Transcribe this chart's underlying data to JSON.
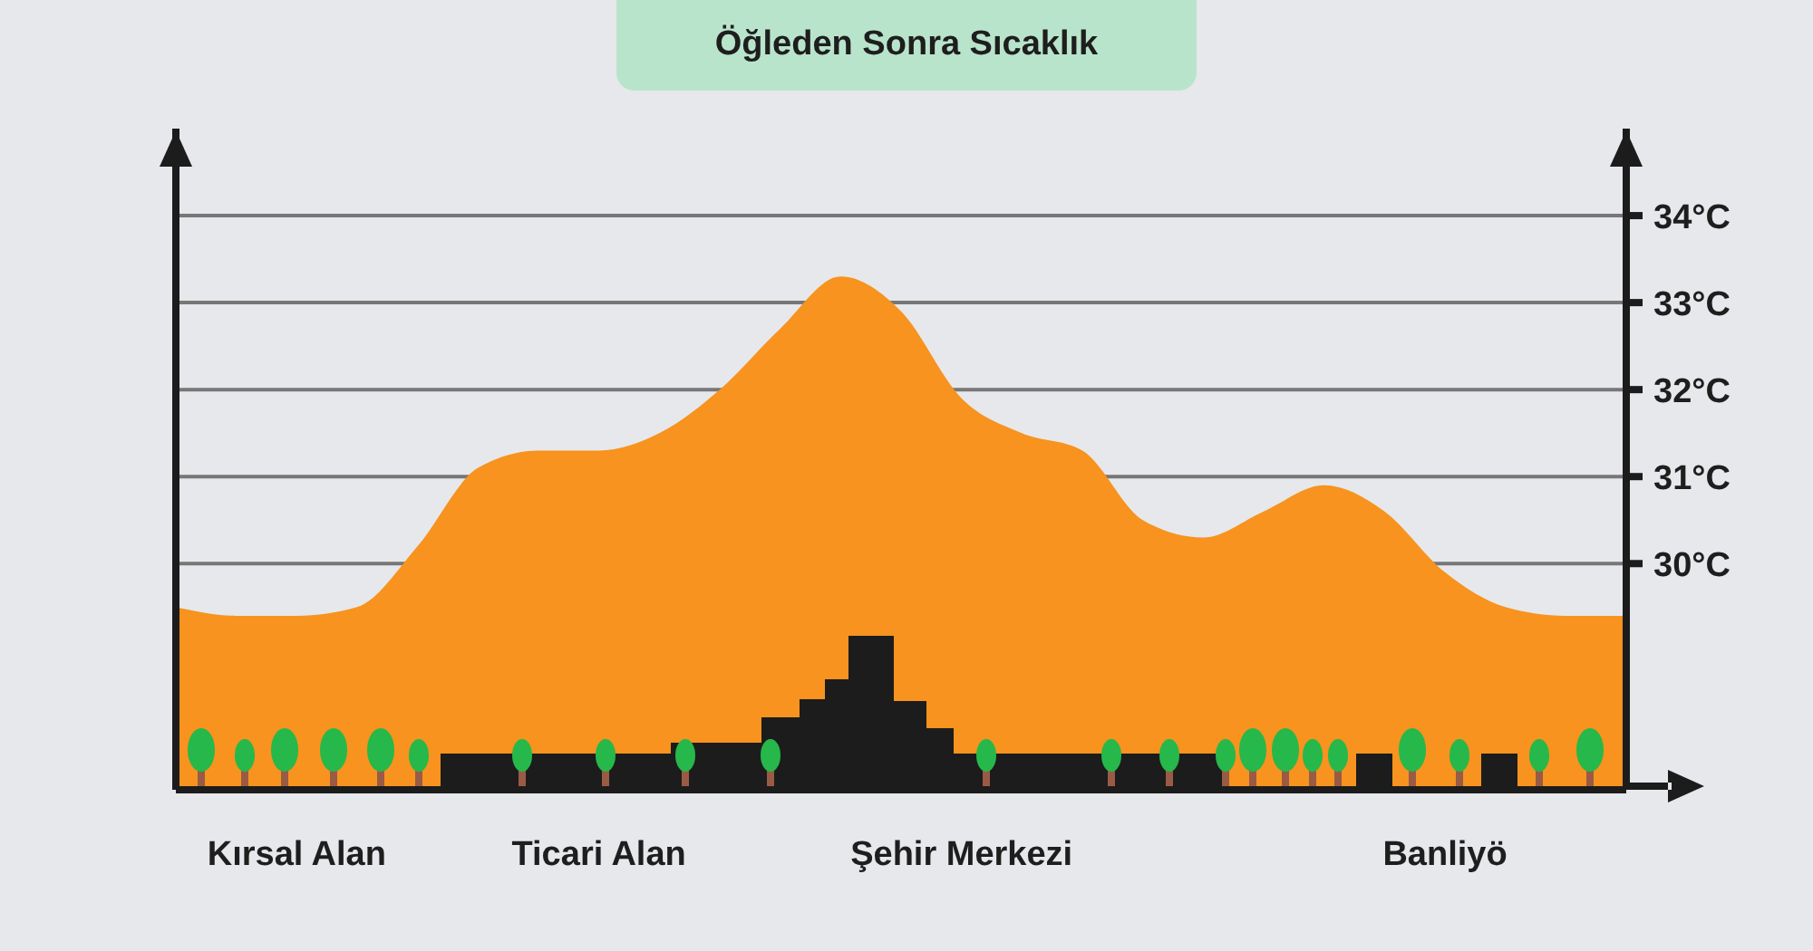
{
  "chart_data": {
    "type": "area",
    "title": "Öğleden Sonra Sıcaklık",
    "categories": [
      null,
      null,
      "Kırsal Alan",
      null,
      null,
      null,
      null,
      "Ticari Alan",
      null,
      null,
      null,
      null,
      null,
      "Şehir Merkezi",
      null,
      null,
      null,
      null,
      null,
      null,
      null,
      "Banliyö",
      null,
      null,
      null
    ],
    "series": [
      {
        "color": "#f7931e",
        "values": [
          29.5,
          29.4,
          29.4,
          29.5,
          30.2,
          31.1,
          31.3,
          31.3,
          31.5,
          32.0,
          32.7,
          33.3,
          32.9,
          31.9,
          31.5,
          31.3,
          30.5,
          30.3,
          30.6,
          30.9,
          30.6,
          29.9,
          29.5,
          29.4,
          29.4
        ]
      }
    ],
    "ylim": [
      27.4,
      35
    ],
    "yticks": [
      {
        "value": 30,
        "label": "30°C"
      },
      {
        "value": 31,
        "label": "31°C"
      },
      {
        "value": 32,
        "label": "32°C"
      },
      {
        "value": 33,
        "label": "33°C"
      },
      {
        "value": 34,
        "label": "34°C"
      }
    ],
    "grid": "y"
  }
}
